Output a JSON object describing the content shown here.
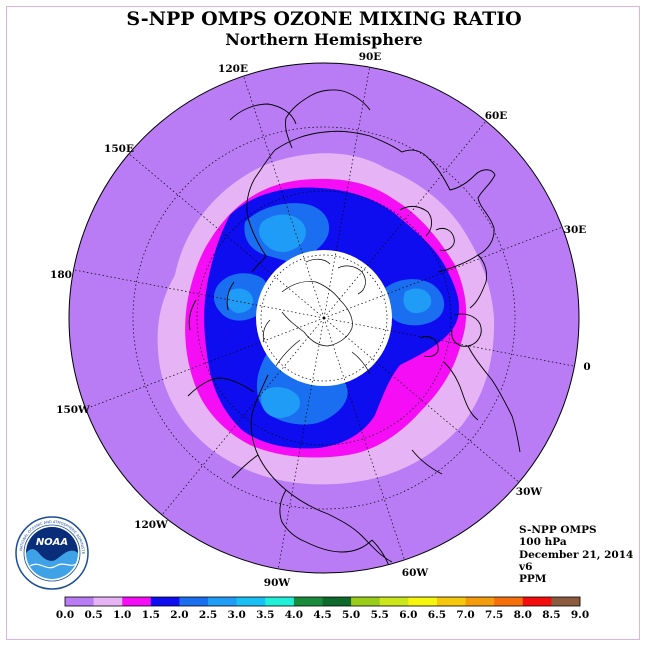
{
  "title": "S-NPP OMPS OZONE MIXING RATIO",
  "subtitle": "Northern Hemisphere",
  "longitude_labels": [
    "120E",
    "90E",
    "60E",
    "150E",
    "30E",
    "180",
    "0",
    "150W",
    "30W",
    "120W",
    "60W",
    "90W"
  ],
  "info": {
    "instrument": "S-NPP OMPS",
    "level": "100 hPa",
    "date": "December 21, 2014",
    "version": "v6",
    "units": "PPM"
  },
  "logo": {
    "name": "NOAA",
    "ring_text": "NATIONAL OCEANIC AND ATMOSPHERIC ADMINISTRATION · U.S. DEPARTMENT OF COMMERCE"
  },
  "colorbar": {
    "ticks": [
      "0.0",
      "0.5",
      "1.0",
      "1.5",
      "2.0",
      "2.5",
      "3.0",
      "3.5",
      "4.0",
      "4.5",
      "5.0",
      "5.5",
      "6.0",
      "6.5",
      "7.0",
      "7.5",
      "8.0",
      "8.5",
      "9.0"
    ],
    "colors": [
      "#b97cf4",
      "#e6b4f4",
      "#f50df5",
      "#0d0df0",
      "#1a6ef0",
      "#1f9cf5",
      "#18c0f5",
      "#20f0d8",
      "#188c3c",
      "#0e6a2c",
      "#9acd1a",
      "#cbe61a",
      "#f5f50d",
      "#f5c80d",
      "#f59c0d",
      "#f5700d",
      "#f50d0d",
      "#8c5a3c"
    ]
  },
  "map_colors": {
    "background": "#b97cf4",
    "band_0_5": "#e6b4f4",
    "band_1_0": "#f50df5",
    "band_1_5": "#0d0df0",
    "band_2_0": "#1a6ef0",
    "band_2_5": "#1f9cf5",
    "no_data": "#ffffff"
  }
}
